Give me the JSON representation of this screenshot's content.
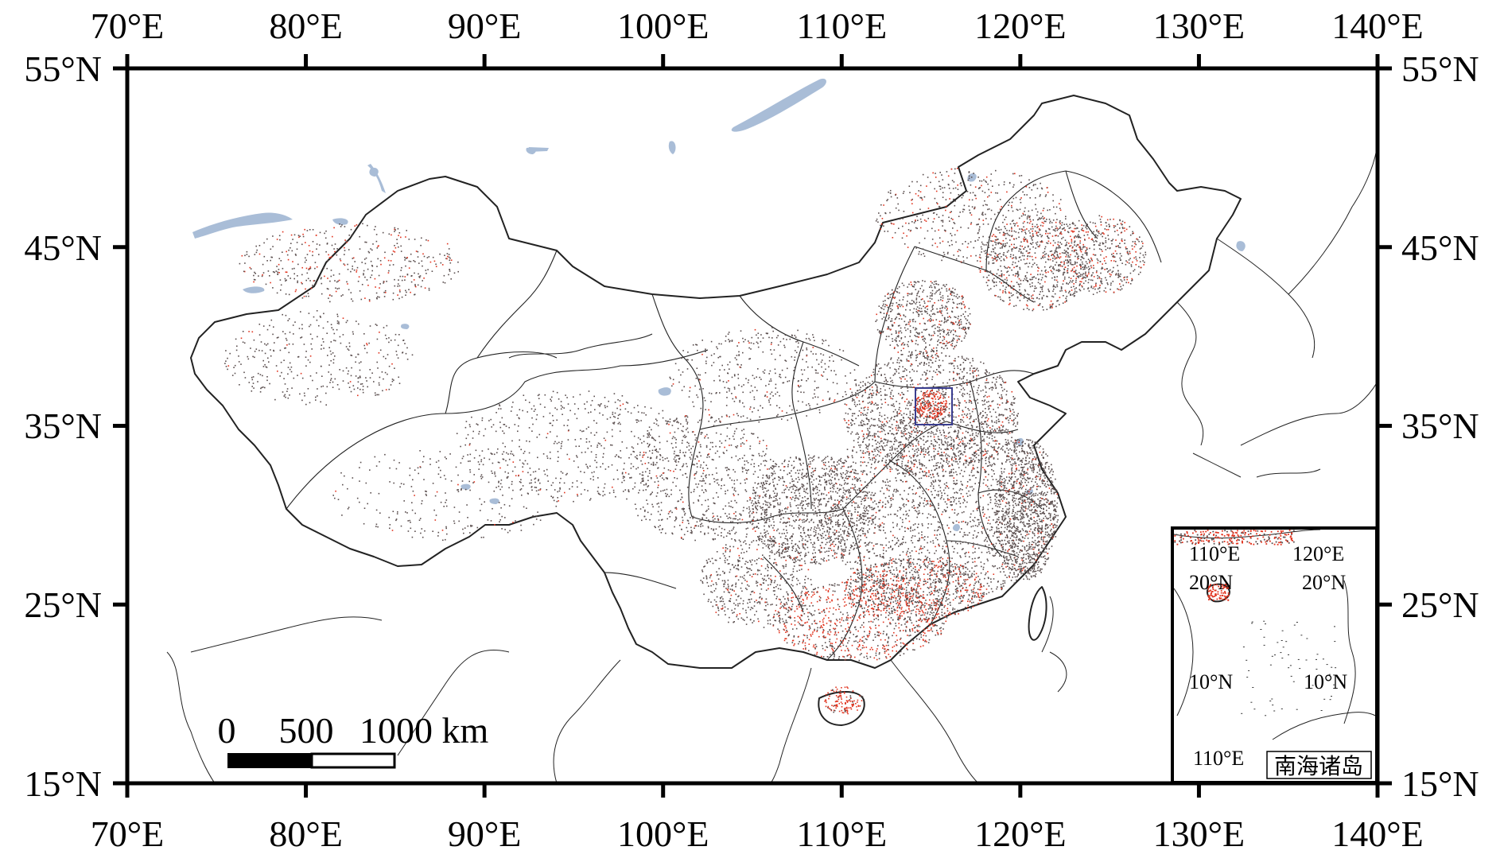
{
  "lon_labels": [
    "70°E",
    "80°E",
    "90°E",
    "100°E",
    "110°E",
    "120°E",
    "130°E",
    "140°E"
  ],
  "lat_labels": [
    "55°N",
    "45°N",
    "35°N",
    "25°N",
    "15°N"
  ],
  "scale_bar": {
    "zero": "0",
    "mid": "500",
    "end": "1000 km"
  },
  "inset": {
    "title": "南海诸岛",
    "lon_labels": [
      "110°E",
      "120°E",
      "110°E"
    ],
    "lat_labels": [
      "20°N",
      "20°N",
      "10°N",
      "10°N"
    ]
  },
  "colors": {
    "frame": "#000000",
    "boundary": "#222222",
    "water": "#a9bdd7",
    "station_grey": "#5a4e4e",
    "station_red": "#e2341f",
    "study_box": "#3a3d8f"
  }
}
